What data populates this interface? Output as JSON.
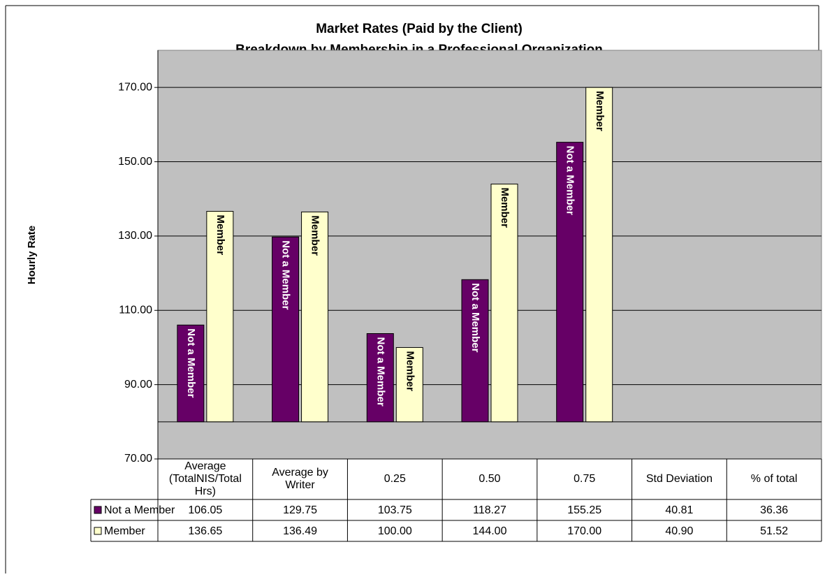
{
  "chart_data": {
    "type": "bar",
    "title": "Market Rates (Paid by the Client)",
    "subtitle": "Breakdown by Membership in a Professional Organization",
    "y_label": "Hourly Rate",
    "categories": [
      "Average (TotalNIS/TotalHrs)",
      "Average by Writer",
      "0.25",
      "0.50",
      "0.75",
      "Std Deviation",
      "% of total"
    ],
    "series": [
      {
        "name": "Not a Member",
        "color": "#660066",
        "values": [
          106.05,
          129.75,
          103.75,
          118.27,
          155.25,
          40.81,
          36.36
        ],
        "value_labels": [
          "106.05",
          "129.75",
          "103.75",
          "118.27",
          "155.25",
          "40.81",
          "36.36"
        ]
      },
      {
        "name": "Member",
        "color": "#ffffcc",
        "values": [
          136.65,
          136.49,
          100,
          144,
          170,
          40.9,
          51.52
        ],
        "value_labels": [
          "136.65",
          "136.49",
          "100.00",
          "144.00",
          "170.00",
          "40.90",
          "51.52"
        ]
      }
    ],
    "ylim": [
      70,
      180
    ],
    "yticks": [
      {
        "value": 70,
        "label": "70.00"
      },
      {
        "value": 90,
        "label": "90.00"
      },
      {
        "value": 110,
        "label": "110.00"
      },
      {
        "value": 130,
        "label": "130.00"
      },
      {
        "value": 150,
        "label": "150.00"
      },
      {
        "value": 170,
        "label": "170.00"
      }
    ],
    "x_axis_crosses": 80,
    "grid": true,
    "plot_background": "#c0c0c0",
    "data_table": true
  }
}
